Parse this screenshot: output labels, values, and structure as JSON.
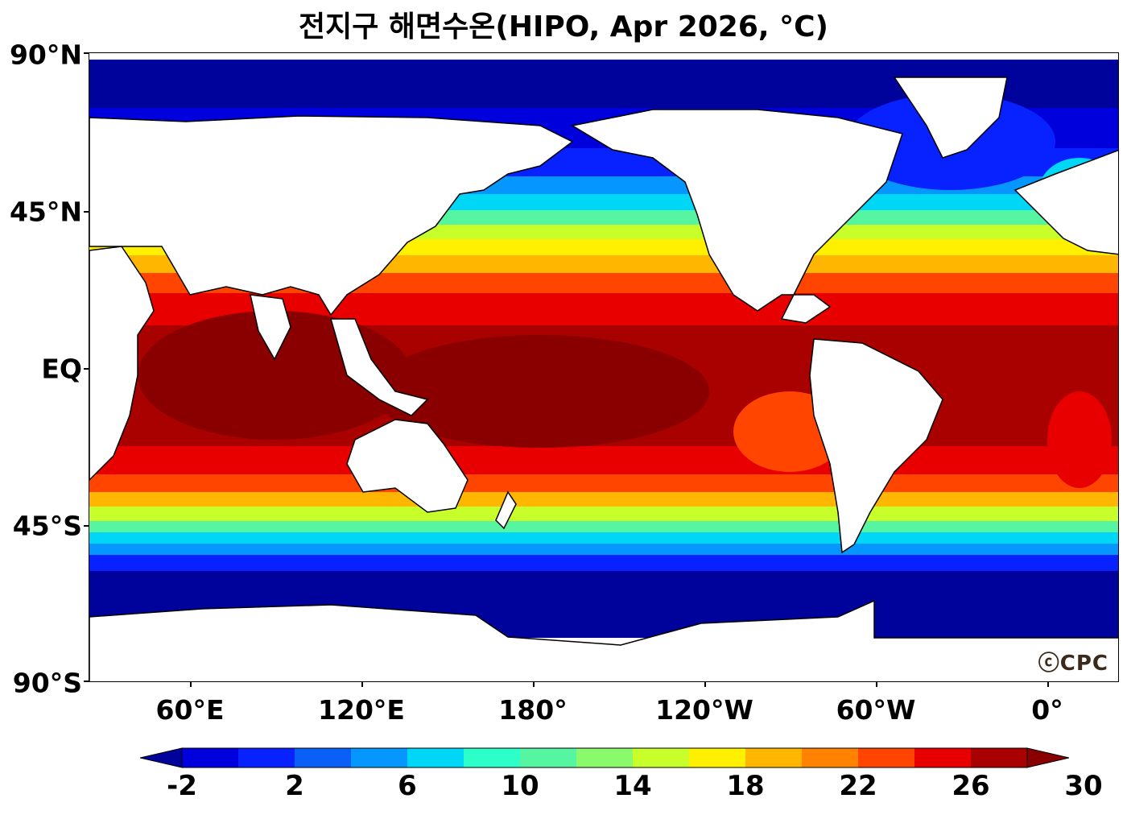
{
  "title": "전지구 해면수온(HIPO, Apr 2026, °C)",
  "credit": "ⓒCPC",
  "lat_labels": [
    "90°N",
    "45°N",
    "EQ",
    "45°S",
    "90°S"
  ],
  "lon_labels": [
    "60°E",
    "120°E",
    "180°",
    "120°W",
    "60°W",
    "0°"
  ],
  "colorbar": {
    "tick_labels": [
      "-2",
      "2",
      "6",
      "10",
      "14",
      "18",
      "22",
      "26",
      "30"
    ],
    "extend": "both",
    "levels": [
      -2,
      0,
      2,
      4,
      6,
      8,
      10,
      12,
      14,
      16,
      18,
      20,
      22,
      24,
      26,
      28,
      30
    ],
    "colors": [
      "#00029c",
      "#0000dd",
      "#0822ff",
      "#0a5ff6",
      "#0597ff",
      "#00d7f6",
      "#2cffc9",
      "#56f5a2",
      "#8af96c",
      "#c8ff2a",
      "#fff000",
      "#ffb600",
      "#ff8300",
      "#ff4500",
      "#e80000",
      "#a90000",
      "#8a0000"
    ]
  }
}
